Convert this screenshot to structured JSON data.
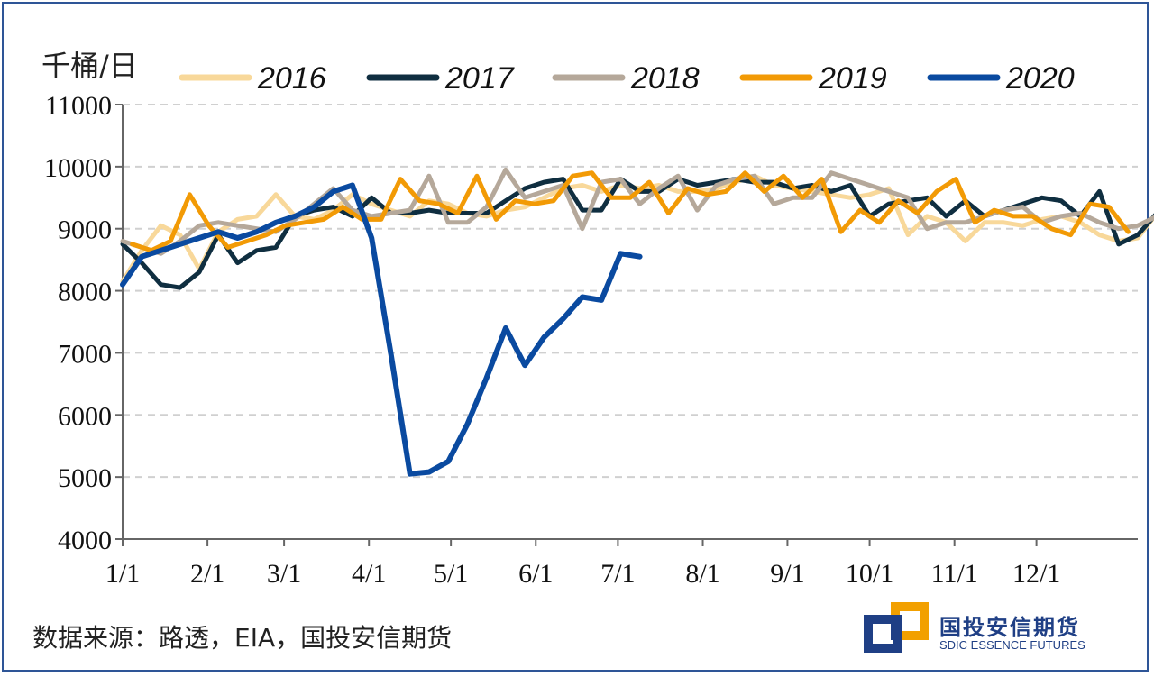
{
  "header": {
    "unit_label": "千桶/日"
  },
  "footer": {
    "source": "数据来源：路透，EIA，国投安信期货"
  },
  "logo": {
    "cn": "国投安信期货",
    "en": "SDIC ESSENCE FUTURES"
  },
  "chart_data": {
    "type": "line",
    "ylabel": "千桶/日",
    "ylim": [
      4000,
      11000
    ],
    "yticks": [
      "4000",
      "5000",
      "6000",
      "7000",
      "8000",
      "9000",
      "10000",
      "11000"
    ],
    "xlim": [
      0,
      53
    ],
    "xticks": [
      {
        "label": "1/1",
        "week": 0
      },
      {
        "label": "2/1",
        "week": 4.43
      },
      {
        "label": "3/1",
        "week": 8.43
      },
      {
        "label": "4/1",
        "week": 12.86
      },
      {
        "label": "5/1",
        "week": 17.14
      },
      {
        "label": "6/1",
        "week": 21.57
      },
      {
        "label": "7/1",
        "week": 25.86
      },
      {
        "label": "8/1",
        "week": 30.29
      },
      {
        "label": "9/1",
        "week": 34.71
      },
      {
        "label": "10/1",
        "week": 39.0
      },
      {
        "label": "11/1",
        "week": 43.43
      },
      {
        "label": "12/1",
        "week": 47.71
      }
    ],
    "grid": true,
    "legend": "top",
    "series": [
      {
        "name": "2016",
        "color": "#f8d89a",
        "width": 5,
        "start": 0,
        "values": [
          8150,
          8650,
          9050,
          8900,
          8350,
          8950,
          9150,
          9200,
          9550,
          9200,
          9150,
          9300,
          9550,
          9400,
          9300,
          9200,
          9450,
          9400,
          9250,
          9200,
          9300,
          9350,
          9500,
          9650,
          9700,
          9600,
          9700,
          9650,
          9700,
          9600,
          9600,
          9650,
          9750,
          9850,
          9700,
          9650,
          9600,
          9550,
          9500,
          9550,
          9650,
          8900,
          9200,
          9100,
          8800,
          9100,
          9100,
          9050,
          9150,
          9200,
          9100,
          8900,
          8800,
          8850,
          9250,
          9300,
          8950,
          8450
        ]
      },
      {
        "name": "2017",
        "color": "#0f2e40",
        "width": 5,
        "start": 0,
        "values": [
          8750,
          8450,
          8100,
          8050,
          8300,
          8900,
          8450,
          8650,
          8700,
          9200,
          9300,
          9350,
          9200,
          9500,
          9250,
          9250,
          9300,
          9250,
          9250,
          9250,
          9450,
          9650,
          9750,
          9800,
          9300,
          9300,
          9800,
          9600,
          9600,
          9800,
          9700,
          9750,
          9800,
          9750,
          9750,
          9650,
          9700,
          9600,
          9700,
          9200,
          9400,
          9450,
          9500,
          9200,
          9450,
          9200,
          9300,
          9400,
          9500,
          9450,
          9200,
          9600,
          8750,
          8900,
          9250,
          9400,
          9450,
          8500
        ]
      },
      {
        "name": "2018",
        "color": "#b5a89a",
        "width": 5,
        "start": 0,
        "values": [
          8800,
          8700,
          8600,
          8800,
          9050,
          9100,
          9050,
          9000,
          8950,
          9150,
          9400,
          9650,
          9300,
          9200,
          9250,
          9300,
          9850,
          9100,
          9100,
          9350,
          9950,
          9500,
          9600,
          9700,
          9000,
          9750,
          9800,
          9400,
          9650,
          9850,
          9300,
          9700,
          9800,
          9850,
          9400,
          9500,
          9500,
          9900,
          9800,
          9700,
          9600,
          9500,
          9000,
          9100,
          9100,
          9200,
          9300,
          9350,
          9100,
          9200,
          9250,
          9100,
          9000,
          9050,
          9200,
          9450,
          9250,
          8550
        ]
      },
      {
        "name": "2019",
        "color": "#f29a05",
        "width": 5,
        "start": 0.5,
        "values": [
          8750,
          8650,
          8800,
          9550,
          9050,
          8700,
          8800,
          8900,
          9050,
          9100,
          9150,
          9350,
          9150,
          9150,
          9800,
          9450,
          9400,
          9250,
          9850,
          9150,
          9450,
          9400,
          9450,
          9850,
          9900,
          9500,
          9500,
          9750,
          9250,
          9650,
          9550,
          9600,
          9900,
          9600,
          9850,
          9500,
          9800,
          8950,
          9300,
          9100,
          9450,
          9250,
          9600,
          9800,
          9100,
          9300,
          9200,
          9200,
          9000,
          8900,
          9400,
          9350,
          8950
        ]
      },
      {
        "name": "2020",
        "color": "#0a4aa0",
        "width": 6,
        "start": 0,
        "values": [
          8100,
          8550,
          8650,
          8750,
          8850,
          8950,
          8850,
          8950,
          9100,
          9200,
          9350,
          9600,
          9700,
          8850,
          7000,
          5050,
          5080,
          5250,
          5850,
          6600,
          7400,
          6800,
          7250,
          7550,
          7900,
          7850,
          8600,
          8550
        ]
      }
    ]
  }
}
